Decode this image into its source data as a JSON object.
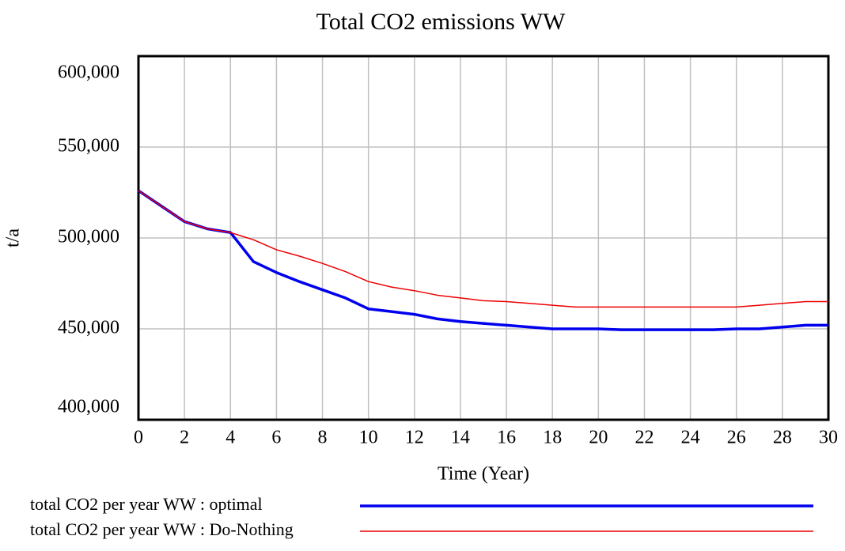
{
  "chart_data": {
    "type": "line",
    "title": "Total CO2 emissions WW",
    "xlabel": "Time (Year)",
    "ylabel": "t/a",
    "x": [
      0,
      1,
      2,
      3,
      4,
      5,
      6,
      7,
      8,
      9,
      10,
      11,
      12,
      13,
      14,
      15,
      16,
      17,
      18,
      19,
      20,
      21,
      22,
      23,
      24,
      25,
      26,
      27,
      28,
      29,
      30
    ],
    "series": [
      {
        "name": "total CO2 per year WW : optimal",
        "color": "#0000ee",
        "width": 3.5,
        "values": [
          526000,
          517500,
          509000,
          505000,
          503000,
          487000,
          481000,
          476000,
          471500,
          467000,
          461000,
          459500,
          458000,
          455500,
          454000,
          453000,
          452000,
          451000,
          450000,
          450000,
          450000,
          449500,
          449500,
          449500,
          449500,
          449500,
          450000,
          450000,
          451000,
          452000,
          452000
        ]
      },
      {
        "name": "total CO2 per year WW : Do-Nothing",
        "color": "#ee0000",
        "width": 1.5,
        "values": [
          526000,
          517500,
          509000,
          505000,
          503000,
          499000,
          493500,
          490000,
          486000,
          481500,
          476000,
          473000,
          471000,
          468500,
          467000,
          465500,
          465000,
          464000,
          463000,
          462000,
          462000,
          462000,
          462000,
          462000,
          462000,
          462000,
          462000,
          463000,
          464000,
          465000,
          465000
        ]
      }
    ],
    "xlim": [
      0,
      30
    ],
    "xticks": [
      0,
      2,
      4,
      6,
      8,
      10,
      12,
      14,
      16,
      18,
      20,
      22,
      24,
      26,
      28,
      30
    ],
    "ylim": [
      400000,
      600000
    ],
    "yticks": [
      {
        "value": 400000,
        "label": "400,000"
      },
      {
        "value": 450000,
        "label": "450,000"
      },
      {
        "value": 500000,
        "label": "500,000"
      },
      {
        "value": 550000,
        "label": "550,000"
      },
      {
        "value": 600000,
        "label": "600,000"
      }
    ],
    "grid": true
  }
}
